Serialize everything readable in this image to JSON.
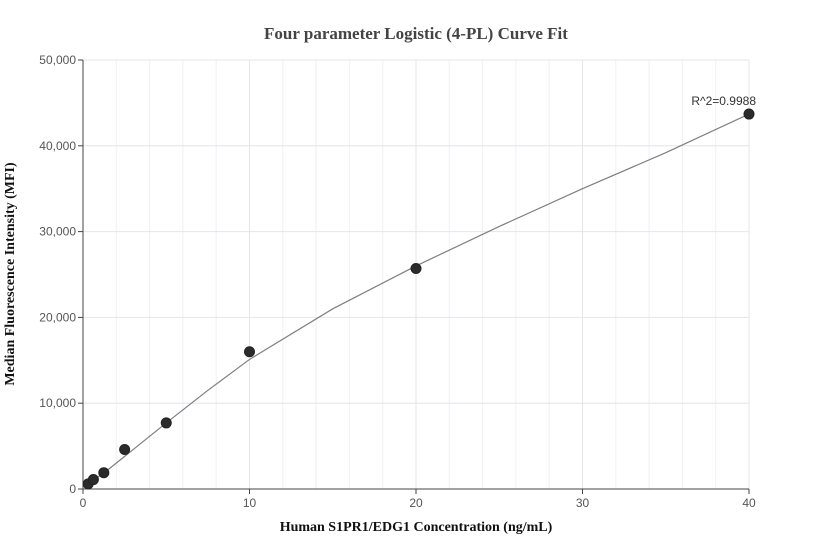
{
  "chart_data": {
    "type": "scatter",
    "title": "Four parameter Logistic (4-PL) Curve Fit",
    "xlabel": "Human S1PR1/EDG1 Concentration (ng/mL)",
    "ylabel": "Median Fluorescence Intensity (MFI)",
    "xlim": [
      0,
      40
    ],
    "ylim": [
      0,
      50000
    ],
    "x_ticks": [
      0,
      10,
      20,
      30,
      40
    ],
    "y_ticks": [
      0,
      10000,
      20000,
      30000,
      40000,
      50000
    ],
    "x_tick_labels": [
      "0",
      "10",
      "20",
      "30",
      "40"
    ],
    "y_tick_labels": [
      "0",
      "10,000",
      "20,000",
      "30,000",
      "40,000",
      "50,000"
    ],
    "grid": true,
    "legend": false,
    "point_color": "#2b2b2b",
    "curve_color": "#7f7f7f",
    "series": [
      {
        "kind": "points",
        "x": [
          0.3125,
          0.625,
          1.25,
          2.5,
          5,
          10,
          20,
          40
        ],
        "y": [
          600,
          1100,
          1900,
          4600,
          7700,
          16000,
          25700,
          43700
        ]
      },
      {
        "kind": "fit-curve",
        "x": [
          0.3125,
          0.625,
          1.25,
          2.5,
          5,
          7.5,
          10,
          15,
          20,
          25,
          30,
          35,
          40
        ],
        "y": [
          700,
          1050,
          1850,
          3800,
          7700,
          11500,
          15100,
          21000,
          26000,
          30600,
          35000,
          39200,
          43700
        ]
      }
    ],
    "annotations": [
      {
        "text": "R^2=0.9988",
        "x": 40,
        "y": 43700
      }
    ]
  }
}
